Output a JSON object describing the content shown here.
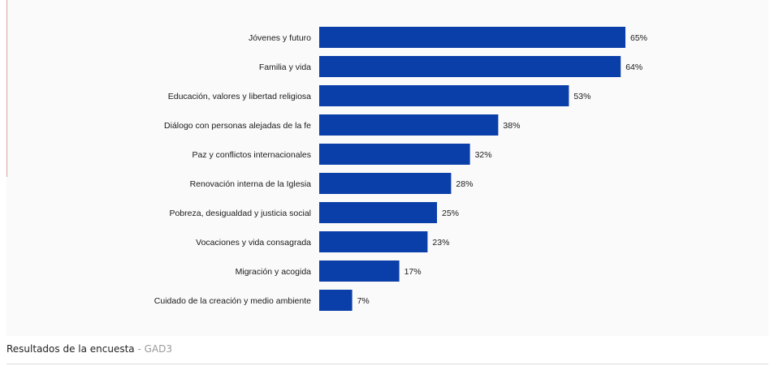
{
  "chart_data": {
    "type": "bar",
    "orientation": "horizontal",
    "categories": [
      "Jóvenes y futuro",
      "Familia y vida",
      "Educación, valores y libertad religiosa",
      "Diálogo con personas alejadas de la fe",
      "Paz y conflictos internacionales",
      "Renovación interna de la Iglesia",
      "Pobreza, desigualdad y justicia social",
      "Vocaciones y vida consagrada",
      "Migración y acogida",
      "Cuidado de la creación y medio ambiente"
    ],
    "values": [
      65,
      64,
      53,
      38,
      32,
      28,
      25,
      23,
      17,
      7
    ],
    "value_labels": [
      "65%",
      "64%",
      "53%",
      "38%",
      "32%",
      "28%",
      "25%",
      "23%",
      "17%",
      "7%"
    ],
    "unit": "%",
    "xlim": [
      0,
      65
    ],
    "bar_color": "#0a3ea8",
    "grid": false
  },
  "caption": {
    "text": "Resultados de la encuesta",
    "separator": " - ",
    "source": "GAD3"
  },
  "colors": {
    "caption_source": "#9a9a9a",
    "panel_background": "#fafafa"
  }
}
